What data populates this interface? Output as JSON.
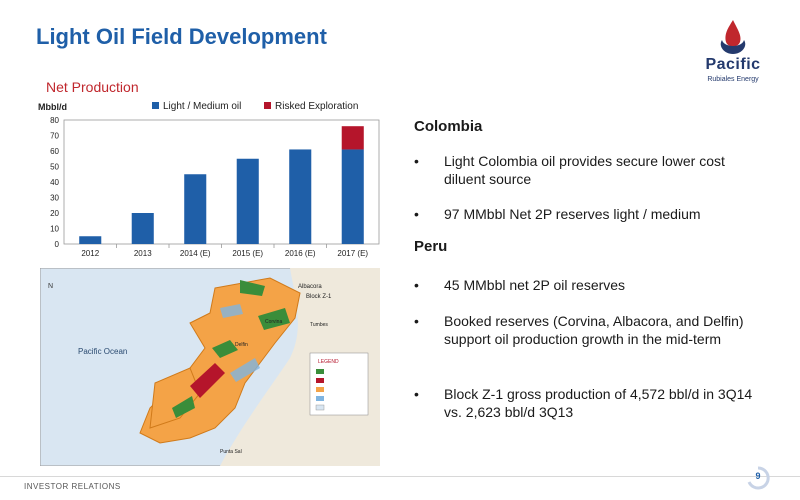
{
  "title": "Light Oil Field Development",
  "logo": {
    "word": "Pacific",
    "sub": "Rubiales Energy"
  },
  "chart_title": "Net Production",
  "chart_data": {
    "type": "bar",
    "stacked": true,
    "ylabel": "Mbbl/d",
    "categories": [
      "2012",
      "2013",
      "2014 (E)",
      "2015 (E)",
      "2016 (E)",
      "2017 (E)"
    ],
    "series": [
      {
        "name": "Light / Medium oil",
        "values": [
          5,
          20,
          45,
          55,
          61,
          61
        ],
        "color": "#1f5fa8"
      },
      {
        "name": "Risked Exploration",
        "values": [
          0,
          0,
          0,
          0,
          0,
          15
        ],
        "color": "#b5152b"
      }
    ],
    "yticks": [
      0,
      10,
      20,
      30,
      40,
      50,
      60,
      70,
      80
    ],
    "ylim": [
      0,
      80
    ],
    "legend": "top",
    "grid": false
  },
  "map": {
    "ocean_label": "Pacific Ocean",
    "labels": [
      "Albacora",
      "Block Z-1",
      "Tumbes",
      "Corvina",
      "Delfin",
      "Punta Sal"
    ],
    "legend_title": "LEGEND"
  },
  "right": {
    "colombia": {
      "heading": "Colombia",
      "bullets": [
        "Light Colombia oil provides secure lower cost diluent source",
        "97 MMbbl Net 2P reserves light / medium"
      ]
    },
    "peru": {
      "heading": "Peru",
      "bullets": [
        "45 MMbbl net 2P  oil reserves",
        "Booked reserves (Corvina, Albacora, and Delfin) support oil production growth in the mid-term",
        "Block Z-1 gross production of 4,572 bbl/d in 3Q14 vs. 2,623 bbl/d 3Q13"
      ]
    },
    "bullet_char": "•"
  },
  "footer": {
    "left": "Investor Relations",
    "page": "9"
  }
}
